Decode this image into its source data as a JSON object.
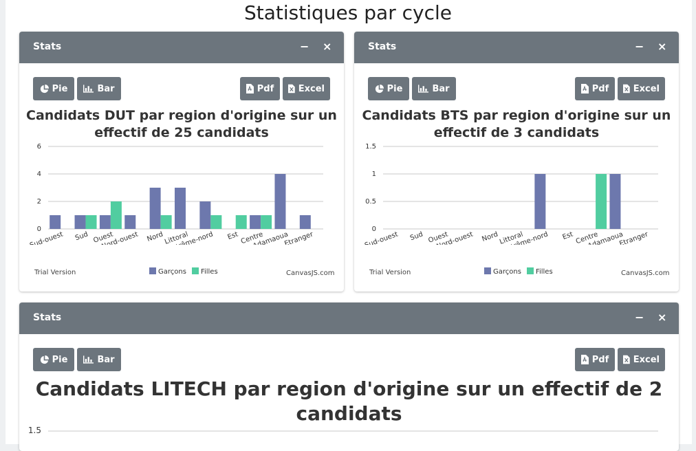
{
  "page": {
    "title": "Statistiques par cycle"
  },
  "colors": {
    "garcons": "#6d78ad",
    "filles": "#51cda0",
    "header": "#6c757d"
  },
  "cards": [
    {
      "header": "Stats",
      "minimize": "−",
      "close": "×",
      "buttons": {
        "pie": "Pie",
        "bar": "Bar",
        "pdf": "Pdf",
        "excel": "Excel"
      },
      "chart_title_line1": "Candidats DUT par region d'origine sur un",
      "chart_title_line2": "effectif de 25 candidats",
      "trial": "Trial Version",
      "credit": "CanvasJS.com",
      "legend": {
        "garcons": "Garçons",
        "filles": "Filles"
      }
    },
    {
      "header": "Stats",
      "minimize": "−",
      "close": "×",
      "buttons": {
        "pie": "Pie",
        "bar": "Bar",
        "pdf": "Pdf",
        "excel": "Excel"
      },
      "chart_title_line1": "Candidats BTS par region d'origine sur un",
      "chart_title_line2": "effectif de 3 candidats",
      "trial": "Trial Version",
      "credit": "CanvasJS.com",
      "legend": {
        "garcons": "Garçons",
        "filles": "Filles"
      }
    },
    {
      "header": "Stats",
      "minimize": "−",
      "close": "×",
      "buttons": {
        "pie": "Pie",
        "bar": "Bar",
        "pdf": "Pdf",
        "excel": "Excel"
      },
      "chart_title_line1": "Candidats LITECH par region d'origine sur un effectif de 2",
      "chart_title_line2": "candidats"
    }
  ],
  "chart_data": [
    {
      "type": "bar",
      "categories": [
        "Sud-ouest",
        "Sud",
        "Ouest",
        "Nord-ouest",
        "Nord",
        "Littoral",
        "Extrême-nord",
        "Est",
        "Centre",
        "Adamaoua",
        "Etranger"
      ],
      "series": [
        {
          "name": "Garçons",
          "values": [
            1,
            1,
            1,
            1,
            3,
            3,
            2,
            0,
            1,
            4,
            1
          ]
        },
        {
          "name": "Filles",
          "values": [
            0,
            1,
            2,
            0,
            1,
            0,
            1,
            1,
            1,
            0,
            0
          ]
        }
      ],
      "yticks": [
        "0",
        "2",
        "4",
        "6"
      ],
      "ylim": [
        0,
        6
      ],
      "legend": "bottom"
    },
    {
      "type": "bar",
      "categories": [
        "Sud-ouest",
        "Sud",
        "Ouest",
        "Nord-ouest",
        "Nord",
        "Littoral",
        "Extrême-nord",
        "Est",
        "Centre",
        "Adamaoua",
        "Etranger"
      ],
      "series": [
        {
          "name": "Garçons",
          "values": [
            0,
            0,
            0,
            0,
            0,
            0,
            1,
            0,
            0,
            1,
            0
          ]
        },
        {
          "name": "Filles",
          "values": [
            0,
            0,
            0,
            0,
            0,
            0,
            0,
            0,
            1,
            0,
            0
          ]
        }
      ],
      "yticks": [
        "0",
        "0.5",
        "1",
        "1.5"
      ],
      "ylim": [
        0,
        1.5
      ],
      "legend": "bottom"
    },
    {
      "type": "bar",
      "yticks": [
        "1.5"
      ],
      "ylim": [
        0,
        1.5
      ]
    }
  ]
}
